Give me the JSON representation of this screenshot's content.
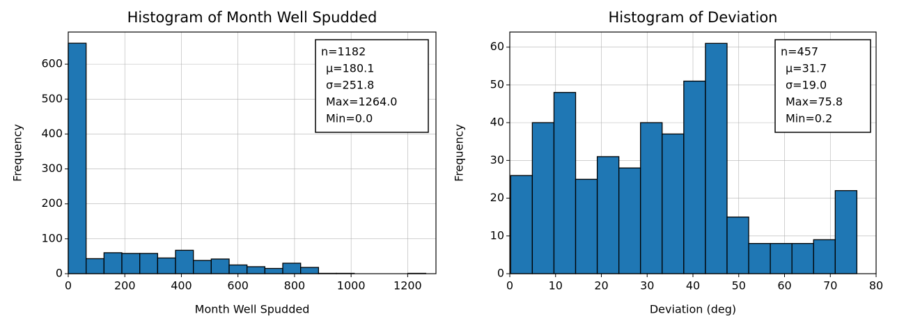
{
  "chart_data": [
    {
      "type": "histogram",
      "title": "Histogram of Month Well Spudded",
      "x_label": "Month Well Spudded",
      "y_label": "Frequency",
      "bins": [
        0,
        63.2,
        126.4,
        189.6,
        252.8,
        316,
        379.2,
        442.4,
        505.6,
        568.8,
        632,
        695.2,
        758.4,
        821.6,
        884.8,
        948,
        1011.2,
        1074.4,
        1137.6,
        1200.8,
        1264
      ],
      "values": [
        660,
        43,
        60,
        58,
        58,
        45,
        67,
        38,
        42,
        25,
        20,
        15,
        30,
        18,
        1,
        1,
        0,
        0,
        0,
        1
      ],
      "color": "#1f77b4",
      "xlim": [
        0,
        1300
      ],
      "ylim": [
        0,
        692
      ],
      "xticks": [
        0,
        200,
        400,
        600,
        800,
        1000,
        1200
      ],
      "yticks": [
        0,
        100,
        200,
        300,
        400,
        500,
        600
      ],
      "grid": true,
      "annotation": [
        "n=1182",
        "μ=180.1",
        "σ=251.8",
        "Max=1264.0",
        "Min=0.0"
      ]
    },
    {
      "type": "histogram",
      "title": "Histogram of Deviation",
      "x_label": "Deviation (deg)",
      "y_label": "Frequency",
      "bins": [
        0.2,
        4.925,
        9.65,
        14.375,
        19.1,
        23.825,
        28.55,
        33.275,
        38,
        42.725,
        47.45,
        52.175,
        56.9,
        61.625,
        66.35,
        71.075,
        75.8
      ],
      "values": [
        26,
        40,
        48,
        25,
        31,
        28,
        40,
        37,
        51,
        61,
        15,
        8,
        8,
        8,
        9,
        22
      ],
      "color": "#1f77b4",
      "xlim": [
        0,
        80
      ],
      "ylim": [
        0,
        64
      ],
      "xticks": [
        0,
        10,
        20,
        30,
        40,
        50,
        60,
        70,
        80
      ],
      "yticks": [
        0,
        10,
        20,
        30,
        40,
        50,
        60
      ],
      "grid": true,
      "annotation": [
        "n=457",
        "μ=31.7",
        "σ=19.0",
        "Max=75.8",
        "Min=0.2"
      ]
    }
  ]
}
